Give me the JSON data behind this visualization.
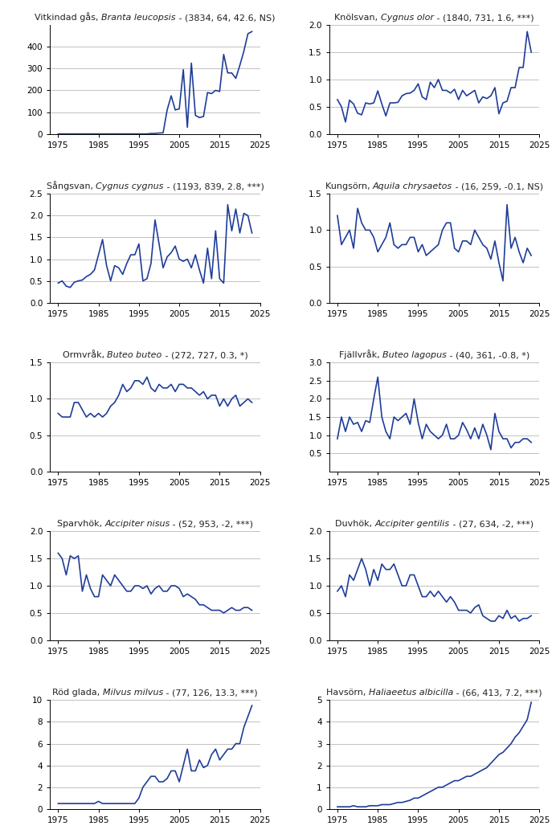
{
  "plots": [
    {
      "title_plain": "Vitkindad gås, ",
      "title_italic": "Branta leucopsis",
      "title_stats": " - (3834, 64, 42.6, NS)",
      "ylim": [
        0,
        500
      ],
      "yticks": [
        0,
        100,
        200,
        300,
        400
      ],
      "years": [
        1975,
        1976,
        1977,
        1978,
        1979,
        1980,
        1981,
        1982,
        1983,
        1984,
        1985,
        1986,
        1987,
        1988,
        1989,
        1990,
        1991,
        1992,
        1993,
        1994,
        1995,
        1996,
        1997,
        1998,
        1999,
        2000,
        2001,
        2002,
        2003,
        2004,
        2005,
        2006,
        2007,
        2008,
        2009,
        2010,
        2011,
        2012,
        2013,
        2014,
        2015,
        2016,
        2017,
        2018,
        2019,
        2020,
        2021,
        2022,
        2023
      ],
      "values": [
        0,
        0,
        0,
        0,
        0,
        0,
        0,
        0,
        0,
        0,
        0,
        0,
        0,
        0,
        0,
        0,
        0,
        0,
        0,
        0,
        0,
        0,
        0,
        2,
        2,
        4,
        5,
        110,
        175,
        110,
        115,
        295,
        30,
        325,
        85,
        75,
        80,
        190,
        185,
        200,
        195,
        365,
        280,
        280,
        255,
        315,
        380,
        460,
        470
      ]
    },
    {
      "title_plain": "Knölsvan, ",
      "title_italic": "Cygnus olor",
      "title_stats": " - (1840, 731, 1.6, ***)",
      "ylim": [
        0.0,
        2.0
      ],
      "yticks": [
        0.0,
        0.5,
        1.0,
        1.5,
        2.0
      ],
      "years": [
        1975,
        1976,
        1977,
        1978,
        1979,
        1980,
        1981,
        1982,
        1983,
        1984,
        1985,
        1986,
        1987,
        1988,
        1989,
        1990,
        1991,
        1992,
        1993,
        1994,
        1995,
        1996,
        1997,
        1998,
        1999,
        2000,
        2001,
        2002,
        2003,
        2004,
        2005,
        2006,
        2007,
        2008,
        2009,
        2010,
        2011,
        2012,
        2013,
        2014,
        2015,
        2016,
        2017,
        2018,
        2019,
        2020,
        2021,
        2022,
        2023
      ],
      "values": [
        0.63,
        0.5,
        0.22,
        0.62,
        0.55,
        0.38,
        0.35,
        0.57,
        0.55,
        0.57,
        0.79,
        0.55,
        0.33,
        0.57,
        0.57,
        0.58,
        0.7,
        0.74,
        0.75,
        0.8,
        0.92,
        0.68,
        0.63,
        0.95,
        0.85,
        1.0,
        0.8,
        0.8,
        0.75,
        0.82,
        0.63,
        0.8,
        0.7,
        0.75,
        0.8,
        0.57,
        0.68,
        0.65,
        0.7,
        0.85,
        0.37,
        0.57,
        0.6,
        0.85,
        0.85,
        1.22,
        1.22,
        1.88,
        1.5
      ]
    },
    {
      "title_plain": "Sångsvan, ",
      "title_italic": "Cygnus cygnus",
      "title_stats": " - (1193, 839, 2.8, ***)",
      "ylim": [
        0.0,
        2.5
      ],
      "yticks": [
        0.0,
        0.5,
        1.0,
        1.5,
        2.0,
        2.5
      ],
      "years": [
        1975,
        1976,
        1977,
        1978,
        1979,
        1980,
        1981,
        1982,
        1983,
        1984,
        1985,
        1986,
        1987,
        1988,
        1989,
        1990,
        1991,
        1992,
        1993,
        1994,
        1995,
        1996,
        1997,
        1998,
        1999,
        2000,
        2001,
        2002,
        2003,
        2004,
        2005,
        2006,
        2007,
        2008,
        2009,
        2010,
        2011,
        2012,
        2013,
        2014,
        2015,
        2016,
        2017,
        2018,
        2019,
        2020,
        2021,
        2022,
        2023
      ],
      "values": [
        0.45,
        0.5,
        0.38,
        0.35,
        0.47,
        0.5,
        0.52,
        0.6,
        0.65,
        0.75,
        1.1,
        1.45,
        0.85,
        0.5,
        0.85,
        0.8,
        0.65,
        0.9,
        1.1,
        1.1,
        1.35,
        0.5,
        0.55,
        0.9,
        1.9,
        1.35,
        0.8,
        1.05,
        1.15,
        1.3,
        1.0,
        0.95,
        1.0,
        0.8,
        1.1,
        0.75,
        0.45,
        1.25,
        0.55,
        1.65,
        0.55,
        0.45,
        2.25,
        1.65,
        2.15,
        1.6,
        2.05,
        2.0,
        1.6
      ]
    },
    {
      "title_plain": "Kungsörn, ",
      "title_italic": "Aquila chrysaetos",
      "title_stats": " - (16, 259, -0.1, NS)",
      "ylim": [
        0.0,
        1.5
      ],
      "yticks": [
        0.0,
        0.5,
        1.0,
        1.5
      ],
      "years": [
        1975,
        1976,
        1977,
        1978,
        1979,
        1980,
        1981,
        1982,
        1983,
        1984,
        1985,
        1986,
        1987,
        1988,
        1989,
        1990,
        1991,
        1992,
        1993,
        1994,
        1995,
        1996,
        1997,
        1998,
        1999,
        2000,
        2001,
        2002,
        2003,
        2004,
        2005,
        2006,
        2007,
        2008,
        2009,
        2010,
        2011,
        2012,
        2013,
        2014,
        2015,
        2016,
        2017,
        2018,
        2019,
        2020,
        2021,
        2022,
        2023
      ],
      "values": [
        1.2,
        0.8,
        0.9,
        1.0,
        0.75,
        1.3,
        1.1,
        1.0,
        1.0,
        0.9,
        0.7,
        0.8,
        0.9,
        1.1,
        0.8,
        0.75,
        0.8,
        0.8,
        0.9,
        0.9,
        0.7,
        0.8,
        0.65,
        0.7,
        0.75,
        0.8,
        1.0,
        1.1,
        1.1,
        0.75,
        0.7,
        0.85,
        0.85,
        0.8,
        1.0,
        0.9,
        0.8,
        0.75,
        0.6,
        0.85,
        0.55,
        0.3,
        1.35,
        0.75,
        0.9,
        0.7,
        0.55,
        0.75,
        0.65
      ]
    },
    {
      "title_plain": "Ormvråk, ",
      "title_italic": "Buteo buteo",
      "title_stats": " - (272, 727, 0.3, *)",
      "ylim": [
        0.0,
        1.5
      ],
      "yticks": [
        0.0,
        0.5,
        1.0,
        1.5
      ],
      "years": [
        1975,
        1976,
        1977,
        1978,
        1979,
        1980,
        1981,
        1982,
        1983,
        1984,
        1985,
        1986,
        1987,
        1988,
        1989,
        1990,
        1991,
        1992,
        1993,
        1994,
        1995,
        1996,
        1997,
        1998,
        1999,
        2000,
        2001,
        2002,
        2003,
        2004,
        2005,
        2006,
        2007,
        2008,
        2009,
        2010,
        2011,
        2012,
        2013,
        2014,
        2015,
        2016,
        2017,
        2018,
        2019,
        2020,
        2021,
        2022,
        2023
      ],
      "values": [
        0.8,
        0.75,
        0.75,
        0.75,
        0.95,
        0.95,
        0.85,
        0.75,
        0.8,
        0.75,
        0.8,
        0.75,
        0.8,
        0.9,
        0.95,
        1.05,
        1.2,
        1.1,
        1.15,
        1.25,
        1.25,
        1.2,
        1.3,
        1.15,
        1.1,
        1.2,
        1.15,
        1.15,
        1.2,
        1.1,
        1.2,
        1.2,
        1.15,
        1.15,
        1.1,
        1.05,
        1.1,
        1.0,
        1.05,
        1.05,
        0.9,
        1.0,
        0.9,
        1.0,
        1.05,
        0.9,
        0.95,
        1.0,
        0.95
      ]
    },
    {
      "title_plain": "Fjällvråk, ",
      "title_italic": "Buteo lagopus",
      "title_stats": " - (40, 361, -0.8, *)",
      "ylim": [
        0.0,
        3.0
      ],
      "yticks": [
        0.5,
        1.0,
        1.5,
        2.0,
        2.5,
        3.0
      ],
      "years": [
        1975,
        1976,
        1977,
        1978,
        1979,
        1980,
        1981,
        1982,
        1983,
        1984,
        1985,
        1986,
        1987,
        1988,
        1989,
        1990,
        1991,
        1992,
        1993,
        1994,
        1995,
        1996,
        1997,
        1998,
        1999,
        2000,
        2001,
        2002,
        2003,
        2004,
        2005,
        2006,
        2007,
        2008,
        2009,
        2010,
        2011,
        2012,
        2013,
        2014,
        2015,
        2016,
        2017,
        2018,
        2019,
        2020,
        2021,
        2022,
        2023
      ],
      "values": [
        0.9,
        1.5,
        1.1,
        1.5,
        1.3,
        1.35,
        1.1,
        1.4,
        1.35,
        2.0,
        2.6,
        1.5,
        1.1,
        0.9,
        1.5,
        1.4,
        1.5,
        1.6,
        1.3,
        2.0,
        1.35,
        0.9,
        1.3,
        1.1,
        1.0,
        0.9,
        1.0,
        1.3,
        0.9,
        0.9,
        1.0,
        1.35,
        1.15,
        0.9,
        1.2,
        0.9,
        1.3,
        1.0,
        0.6,
        1.6,
        1.1,
        0.9,
        0.9,
        0.65,
        0.8,
        0.8,
        0.9,
        0.9,
        0.8
      ]
    },
    {
      "title_plain": "Sparvhök, ",
      "title_italic": "Accipiter nisus",
      "title_stats": " - (52, 953, -2, ***)",
      "ylim": [
        0.0,
        2.0
      ],
      "yticks": [
        0.0,
        0.5,
        1.0,
        1.5,
        2.0
      ],
      "years": [
        1975,
        1976,
        1977,
        1978,
        1979,
        1980,
        1981,
        1982,
        1983,
        1984,
        1985,
        1986,
        1987,
        1988,
        1989,
        1990,
        1991,
        1992,
        1993,
        1994,
        1995,
        1996,
        1997,
        1998,
        1999,
        2000,
        2001,
        2002,
        2003,
        2004,
        2005,
        2006,
        2007,
        2008,
        2009,
        2010,
        2011,
        2012,
        2013,
        2014,
        2015,
        2016,
        2017,
        2018,
        2019,
        2020,
        2021,
        2022,
        2023
      ],
      "values": [
        1.6,
        1.5,
        1.2,
        1.55,
        1.5,
        1.55,
        0.9,
        1.2,
        0.95,
        0.8,
        0.8,
        1.2,
        1.1,
        1.0,
        1.2,
        1.1,
        1.0,
        0.9,
        0.9,
        1.0,
        1.0,
        0.95,
        1.0,
        0.85,
        0.95,
        1.0,
        0.9,
        0.9,
        1.0,
        1.0,
        0.95,
        0.8,
        0.85,
        0.8,
        0.75,
        0.65,
        0.65,
        0.6,
        0.55,
        0.55,
        0.55,
        0.5,
        0.55,
        0.6,
        0.55,
        0.55,
        0.6,
        0.6,
        0.55
      ]
    },
    {
      "title_plain": "Duvhök, ",
      "title_italic": "Accipiter gentilis",
      "title_stats": " - (27, 634, -2, ***)",
      "ylim": [
        0.0,
        2.0
      ],
      "yticks": [
        0.0,
        0.5,
        1.0,
        1.5,
        2.0
      ],
      "years": [
        1975,
        1976,
        1977,
        1978,
        1979,
        1980,
        1981,
        1982,
        1983,
        1984,
        1985,
        1986,
        1987,
        1988,
        1989,
        1990,
        1991,
        1992,
        1993,
        1994,
        1995,
        1996,
        1997,
        1998,
        1999,
        2000,
        2001,
        2002,
        2003,
        2004,
        2005,
        2006,
        2007,
        2008,
        2009,
        2010,
        2011,
        2012,
        2013,
        2014,
        2015,
        2016,
        2017,
        2018,
        2019,
        2020,
        2021,
        2022,
        2023
      ],
      "values": [
        0.9,
        1.0,
        0.8,
        1.2,
        1.1,
        1.3,
        1.5,
        1.3,
        1.0,
        1.3,
        1.1,
        1.4,
        1.3,
        1.3,
        1.4,
        1.2,
        1.0,
        1.0,
        1.2,
        1.2,
        1.0,
        0.8,
        0.8,
        0.9,
        0.8,
        0.9,
        0.8,
        0.7,
        0.8,
        0.7,
        0.55,
        0.55,
        0.55,
        0.5,
        0.6,
        0.65,
        0.45,
        0.4,
        0.35,
        0.35,
        0.45,
        0.4,
        0.55,
        0.4,
        0.45,
        0.35,
        0.4,
        0.4,
        0.45
      ]
    },
    {
      "title_plain": "Röd glada, ",
      "title_italic": "Milvus milvus",
      "title_stats": " - (77, 126, 13.3, ***)",
      "ylim": [
        0,
        10
      ],
      "yticks": [
        0,
        2,
        4,
        6,
        8,
        10
      ],
      "years": [
        1975,
        1976,
        1977,
        1978,
        1979,
        1980,
        1981,
        1982,
        1983,
        1984,
        1985,
        1986,
        1987,
        1988,
        1989,
        1990,
        1991,
        1992,
        1993,
        1994,
        1995,
        1996,
        1997,
        1998,
        1999,
        2000,
        2001,
        2002,
        2003,
        2004,
        2005,
        2006,
        2007,
        2008,
        2009,
        2010,
        2011,
        2012,
        2013,
        2014,
        2015,
        2016,
        2017,
        2018,
        2019,
        2020,
        2021,
        2022,
        2023
      ],
      "values": [
        0.5,
        0.5,
        0.5,
        0.5,
        0.5,
        0.5,
        0.5,
        0.5,
        0.5,
        0.5,
        0.7,
        0.5,
        0.5,
        0.5,
        0.5,
        0.5,
        0.5,
        0.5,
        0.5,
        0.5,
        1.0,
        2.0,
        2.5,
        3.0,
        3.0,
        2.5,
        2.5,
        2.8,
        3.5,
        3.5,
        2.5,
        4.0,
        5.5,
        3.5,
        3.5,
        4.5,
        3.8,
        4.0,
        5.0,
        5.5,
        4.5,
        5.0,
        5.5,
        5.5,
        6.0,
        6.0,
        7.5,
        8.5,
        9.5
      ]
    },
    {
      "title_plain": "Havsörn, ",
      "title_italic": "Haliaeetus albicilla",
      "title_stats": " - (66, 413, 7.2, ***)",
      "ylim": [
        0,
        5
      ],
      "yticks": [
        0,
        1,
        2,
        3,
        4,
        5
      ],
      "years": [
        1975,
        1976,
        1977,
        1978,
        1979,
        1980,
        1981,
        1982,
        1983,
        1984,
        1985,
        1986,
        1987,
        1988,
        1989,
        1990,
        1991,
        1992,
        1993,
        1994,
        1995,
        1996,
        1997,
        1998,
        1999,
        2000,
        2001,
        2002,
        2003,
        2004,
        2005,
        2006,
        2007,
        2008,
        2009,
        2010,
        2011,
        2012,
        2013,
        2014,
        2015,
        2016,
        2017,
        2018,
        2019,
        2020,
        2021,
        2022,
        2023
      ],
      "values": [
        0.1,
        0.1,
        0.1,
        0.1,
        0.15,
        0.1,
        0.1,
        0.1,
        0.15,
        0.15,
        0.15,
        0.2,
        0.2,
        0.2,
        0.25,
        0.3,
        0.3,
        0.35,
        0.4,
        0.5,
        0.5,
        0.6,
        0.7,
        0.8,
        0.9,
        1.0,
        1.0,
        1.1,
        1.2,
        1.3,
        1.3,
        1.4,
        1.5,
        1.5,
        1.6,
        1.7,
        1.8,
        1.9,
        2.1,
        2.3,
        2.5,
        2.6,
        2.8,
        3.0,
        3.3,
        3.5,
        3.8,
        4.1,
        4.9
      ]
    }
  ],
  "line_color": "#1f3d99",
  "line_width": 1.2,
  "background_color": "#ffffff",
  "xlim": [
    1973,
    2025
  ],
  "xticks": [
    1975,
    1985,
    1995,
    2005,
    2015,
    2025
  ],
  "title_fontsize": 8.0,
  "tick_fontsize": 7.5,
  "grid_color": "#aaaaaa",
  "grid_lw": 0.5
}
